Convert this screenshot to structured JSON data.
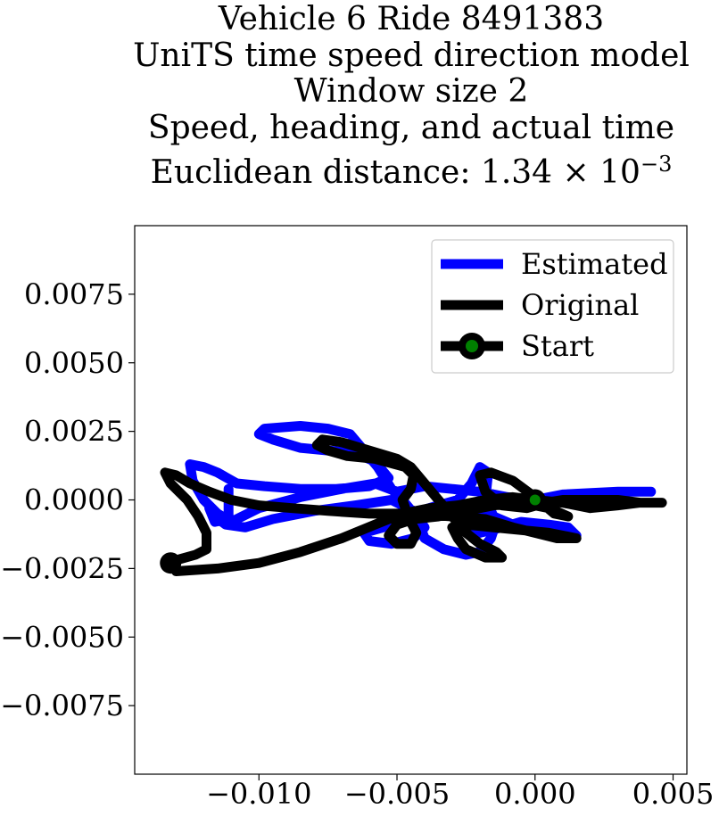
{
  "chart_data": {
    "type": "line",
    "title_lines": [
      "Vehicle 6 Ride 8491383",
      "UniTS time speed direction model",
      "Window size 2",
      "Speed, heading, and actual time"
    ],
    "title_distance_prefix": "Euclidean distance: 1.34 × 10",
    "title_distance_exponent": "−3",
    "xlim": [
      -0.0145,
      0.0055
    ],
    "ylim": [
      -0.01,
      0.01
    ],
    "xticks": [
      {
        "value": -0.01,
        "label": "−0.010"
      },
      {
        "value": -0.005,
        "label": "−0.005"
      },
      {
        "value": 0.0,
        "label": "0.000"
      },
      {
        "value": 0.005,
        "label": "0.005"
      }
    ],
    "yticks": [
      {
        "value": 0.0075,
        "label": "0.0075"
      },
      {
        "value": 0.005,
        "label": "0.0050"
      },
      {
        "value": 0.0025,
        "label": "0.0025"
      },
      {
        "value": 0.0,
        "label": "0.0000"
      },
      {
        "value": -0.0025,
        "label": "−0.0025"
      },
      {
        "value": -0.005,
        "label": "−0.0050"
      },
      {
        "value": -0.0075,
        "label": "−0.0075"
      }
    ],
    "grid": false,
    "legend_position": "top-right",
    "series": [
      {
        "name": "Estimated",
        "color": "#0000ff",
        "points": [
          [
            0.0042,
            0.0003
          ],
          [
            0.003,
            0.0003
          ],
          [
            0.001,
            0.0002
          ],
          [
            0.0,
            0.0
          ],
          [
            -0.001,
            0.0001
          ],
          [
            -0.002,
            0.0003
          ],
          [
            -0.003,
            0.0004
          ],
          [
            -0.004,
            0.0005
          ],
          [
            -0.005,
            0.0003
          ],
          [
            -0.0058,
            0.0006
          ],
          [
            -0.007,
            0.0004
          ],
          [
            -0.0085,
            0.0001
          ],
          [
            -0.01,
            -0.0003
          ],
          [
            -0.011,
            -0.0008
          ],
          [
            -0.0115,
            -0.0005
          ],
          [
            -0.012,
            0.0
          ],
          [
            -0.0124,
            0.0007
          ],
          [
            -0.0125,
            0.0013
          ],
          [
            -0.012,
            0.0012
          ],
          [
            -0.0115,
            0.001
          ],
          [
            -0.0108,
            0.0006
          ],
          [
            -0.0098,
            0.0005
          ],
          [
            -0.0085,
            0.0004
          ],
          [
            -0.0072,
            0.0004
          ],
          [
            -0.006,
            0.0005
          ],
          [
            -0.0053,
            0.0008
          ],
          [
            -0.0058,
            0.0014
          ],
          [
            -0.0065,
            0.0017
          ],
          [
            -0.0075,
            0.0018
          ],
          [
            -0.0085,
            0.0019
          ],
          [
            -0.0095,
            0.0022
          ],
          [
            -0.01,
            0.0024
          ],
          [
            -0.0098,
            0.0026
          ],
          [
            -0.0085,
            0.0027
          ],
          [
            -0.0075,
            0.0026
          ],
          [
            -0.0067,
            0.0024
          ],
          [
            -0.0062,
            0.0018
          ],
          [
            -0.0057,
            0.0012
          ],
          [
            -0.0052,
            0.0004
          ],
          [
            -0.0048,
            0.0
          ],
          [
            -0.0043,
            -0.0006
          ],
          [
            -0.004,
            -0.0014
          ],
          [
            -0.0033,
            -0.0018
          ],
          [
            -0.0025,
            -0.002
          ],
          [
            -0.002,
            -0.0019
          ],
          [
            -0.0016,
            -0.0014
          ],
          [
            -0.0014,
            -0.0008
          ],
          [
            -0.0018,
            -0.0004
          ],
          [
            -0.0025,
            -0.0002
          ],
          [
            -0.003,
            -0.0004
          ],
          [
            -0.0027,
            -0.001
          ],
          [
            -0.002,
            -0.0012
          ],
          [
            -0.0012,
            -0.001
          ],
          [
            -0.0005,
            -0.0008
          ],
          [
            0.0005,
            -0.0009
          ],
          [
            0.0012,
            -0.001
          ],
          [
            0.0015,
            -0.0013
          ],
          [
            0.0008,
            -0.0013
          ],
          [
            0.0,
            -0.001
          ],
          [
            -0.0008,
            -0.0009
          ],
          [
            -0.0015,
            -0.0006
          ],
          [
            -0.0018,
            0.0
          ],
          [
            -0.0017,
            0.001
          ],
          [
            -0.002,
            0.0012
          ],
          [
            -0.0023,
            0.0006
          ],
          [
            -0.0028,
            0.0
          ],
          [
            -0.0035,
            -0.0002
          ],
          [
            -0.0045,
            -0.0005
          ],
          [
            -0.005,
            -0.0008
          ],
          [
            -0.0055,
            -0.001
          ],
          [
            -0.0062,
            -0.0012
          ],
          [
            -0.006,
            -0.0015
          ],
          [
            -0.0052,
            -0.0016
          ],
          [
            -0.0044,
            -0.0014
          ],
          [
            -0.004,
            -0.001
          ],
          [
            -0.0044,
            -0.0004
          ],
          [
            -0.0052,
            0.0
          ],
          [
            -0.0065,
            -0.0002
          ],
          [
            -0.008,
            -0.0004
          ],
          [
            -0.0095,
            -0.0007
          ],
          [
            -0.0105,
            -0.001
          ],
          [
            -0.0112,
            -0.0009
          ],
          [
            -0.0116,
            -0.0006
          ],
          [
            -0.0118,
            -0.0003
          ],
          [
            -0.0116,
            -0.0008
          ],
          [
            -0.0111,
            -0.0007
          ],
          [
            -0.0111,
            0.0004
          ]
        ]
      },
      {
        "name": "Original",
        "color": "#000000",
        "points": [
          [
            -0.0132,
            -0.0023
          ],
          [
            -0.013,
            -0.0026
          ],
          [
            -0.0115,
            -0.0025
          ],
          [
            -0.01,
            -0.0023
          ],
          [
            -0.0085,
            -0.0019
          ],
          [
            -0.007,
            -0.0014
          ],
          [
            -0.0058,
            -0.0009
          ],
          [
            -0.0048,
            -0.0005
          ],
          [
            -0.0038,
            -0.0003
          ],
          [
            -0.0028,
            -0.0002
          ],
          [
            -0.0018,
            0.0
          ],
          [
            -0.0008,
            0.0001
          ],
          [
            0.0,
            0.0
          ],
          [
            0.001,
            -0.0001
          ],
          [
            0.002,
            -0.0003
          ],
          [
            0.003,
            -0.0002
          ],
          [
            0.0038,
            -0.0001
          ],
          [
            0.0046,
            -0.0001
          ],
          [
            0.0038,
            -0.0001
          ],
          [
            0.003,
            0.0
          ],
          [
            0.002,
            0.0
          ],
          [
            0.001,
            0.0
          ],
          [
            0.0004,
            -0.0001
          ],
          [
            -0.0003,
            -0.0003
          ],
          [
            -0.0012,
            -0.0002
          ],
          [
            -0.0018,
            0.0003
          ],
          [
            -0.002,
            0.0009
          ],
          [
            -0.0016,
            0.001
          ],
          [
            -0.0008,
            0.0007
          ],
          [
            0.0,
            0.0001
          ],
          [
            0.0007,
            -0.0005
          ],
          [
            0.0012,
            -0.0006
          ],
          [
            0.0005,
            -0.0003
          ],
          [
            -0.0005,
            -0.0001
          ],
          [
            -0.0015,
            -0.0002
          ],
          [
            -0.0025,
            -0.0004
          ],
          [
            -0.0035,
            -0.0006
          ],
          [
            -0.0044,
            -0.0007
          ],
          [
            -0.005,
            -0.0009
          ],
          [
            -0.0053,
            -0.0013
          ],
          [
            -0.005,
            -0.0016
          ],
          [
            -0.0045,
            -0.0016
          ],
          [
            -0.0043,
            -0.0012
          ],
          [
            -0.0046,
            -0.0006
          ],
          [
            -0.0048,
            0.0
          ],
          [
            -0.0045,
            0.0004
          ],
          [
            -0.0044,
            0.0009
          ],
          [
            -0.0047,
            0.0012
          ],
          [
            -0.0058,
            0.0015
          ],
          [
            -0.0068,
            0.0016
          ],
          [
            -0.0075,
            0.0018
          ],
          [
            -0.0079,
            0.002
          ],
          [
            -0.0077,
            0.0022
          ],
          [
            -0.007,
            0.0021
          ],
          [
            -0.006,
            0.0018
          ],
          [
            -0.005,
            0.0015
          ],
          [
            -0.0045,
            0.0012
          ],
          [
            -0.004,
            0.0006
          ],
          [
            -0.0035,
            0.0
          ],
          [
            -0.003,
            -0.0006
          ],
          [
            -0.0025,
            -0.0012
          ],
          [
            -0.002,
            -0.0016
          ],
          [
            -0.0014,
            -0.0019
          ],
          [
            -0.0012,
            -0.0021
          ],
          [
            -0.0018,
            -0.0021
          ],
          [
            -0.0025,
            -0.0018
          ],
          [
            -0.0028,
            -0.0014
          ],
          [
            -0.003,
            -0.001
          ],
          [
            -0.0025,
            -0.0009
          ],
          [
            -0.0015,
            -0.001
          ],
          [
            -0.0005,
            -0.0011
          ],
          [
            0.0005,
            -0.0012
          ],
          [
            0.0015,
            -0.0014
          ],
          [
            0.0008,
            -0.0014
          ],
          [
            0.0,
            -0.0012
          ],
          [
            -0.0008,
            -0.001
          ],
          [
            -0.0018,
            -0.0007
          ],
          [
            -0.003,
            -0.0006
          ],
          [
            -0.0045,
            -0.0005
          ],
          [
            -0.006,
            -0.0005
          ],
          [
            -0.0075,
            -0.0004
          ],
          [
            -0.0088,
            -0.0003
          ],
          [
            -0.01,
            -0.0002
          ],
          [
            -0.011,
            0.0
          ],
          [
            -0.0118,
            0.0003
          ],
          [
            -0.0125,
            0.0006
          ],
          [
            -0.013,
            0.0009
          ],
          [
            -0.0134,
            0.001
          ],
          [
            -0.0132,
            0.0006
          ],
          [
            -0.0126,
            0.0
          ],
          [
            -0.0122,
            -0.0006
          ],
          [
            -0.0119,
            -0.0012
          ],
          [
            -0.0119,
            -0.0018
          ],
          [
            -0.0123,
            -0.002
          ],
          [
            -0.013,
            -0.0022
          ],
          [
            -0.0132,
            -0.0023
          ]
        ]
      }
    ],
    "start_marker": {
      "name": "Start",
      "x": 0.0,
      "y": 0.0,
      "fill_color": "#008000",
      "edge_color": "#000000",
      "original_start": [
        -0.0132,
        -0.0023
      ]
    },
    "legend_entries": [
      "Estimated",
      "Original",
      "Start"
    ]
  }
}
